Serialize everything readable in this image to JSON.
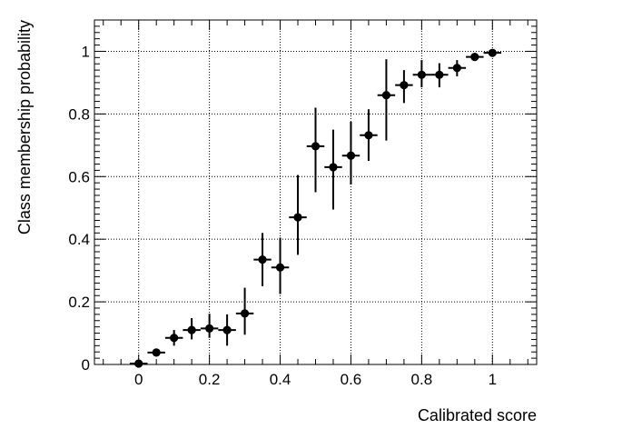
{
  "chart_data": {
    "type": "scatter",
    "title": "",
    "xlabel": "Calibrated score",
    "ylabel": "Class membership probability",
    "xlim": [
      -0.125,
      1.125
    ],
    "ylim": [
      0,
      1.1
    ],
    "grid": true,
    "x_ticks": [
      "0",
      "0.2",
      "0.4",
      "0.6",
      "0.8",
      "1"
    ],
    "y_ticks": [
      "0",
      "0.2",
      "0.4",
      "0.6",
      "0.8",
      "1"
    ],
    "x_tick_values": [
      0,
      0.2,
      0.4,
      0.6,
      0.8,
      1.0
    ],
    "y_tick_values": [
      0,
      0.2,
      0.4,
      0.6,
      0.8,
      1.0
    ],
    "x_half_width": 0.025,
    "series": [
      {
        "points": [
          {
            "x": 0.0,
            "y": 0.003,
            "lo": 0.0,
            "hi": 0.008
          },
          {
            "x": 0.05,
            "y": 0.038,
            "lo": 0.03,
            "hi": 0.048
          },
          {
            "x": 0.1,
            "y": 0.085,
            "lo": 0.06,
            "hi": 0.11
          },
          {
            "x": 0.15,
            "y": 0.11,
            "lo": 0.08,
            "hi": 0.148
          },
          {
            "x": 0.2,
            "y": 0.115,
            "lo": 0.085,
            "hi": 0.162
          },
          {
            "x": 0.25,
            "y": 0.11,
            "lo": 0.06,
            "hi": 0.16
          },
          {
            "x": 0.3,
            "y": 0.163,
            "lo": 0.095,
            "hi": 0.245
          },
          {
            "x": 0.35,
            "y": 0.335,
            "lo": 0.25,
            "hi": 0.42
          },
          {
            "x": 0.4,
            "y": 0.31,
            "lo": 0.225,
            "hi": 0.405
          },
          {
            "x": 0.45,
            "y": 0.47,
            "lo": 0.35,
            "hi": 0.605
          },
          {
            "x": 0.5,
            "y": 0.697,
            "lo": 0.55,
            "hi": 0.82
          },
          {
            "x": 0.55,
            "y": 0.63,
            "lo": 0.495,
            "hi": 0.75
          },
          {
            "x": 0.6,
            "y": 0.667,
            "lo": 0.575,
            "hi": 0.775
          },
          {
            "x": 0.65,
            "y": 0.732,
            "lo": 0.65,
            "hi": 0.815
          },
          {
            "x": 0.7,
            "y": 0.86,
            "lo": 0.715,
            "hi": 0.975
          },
          {
            "x": 0.75,
            "y": 0.892,
            "lo": 0.835,
            "hi": 0.94
          },
          {
            "x": 0.8,
            "y": 0.925,
            "lo": 0.885,
            "hi": 0.972
          },
          {
            "x": 0.85,
            "y": 0.925,
            "lo": 0.885,
            "hi": 0.962
          },
          {
            "x": 0.9,
            "y": 0.947,
            "lo": 0.92,
            "hi": 0.972
          },
          {
            "x": 0.95,
            "y": 0.982,
            "lo": 0.972,
            "hi": 0.99
          },
          {
            "x": 1.0,
            "y": 0.995,
            "lo": 0.988,
            "hi": 1.0
          }
        ]
      }
    ]
  }
}
